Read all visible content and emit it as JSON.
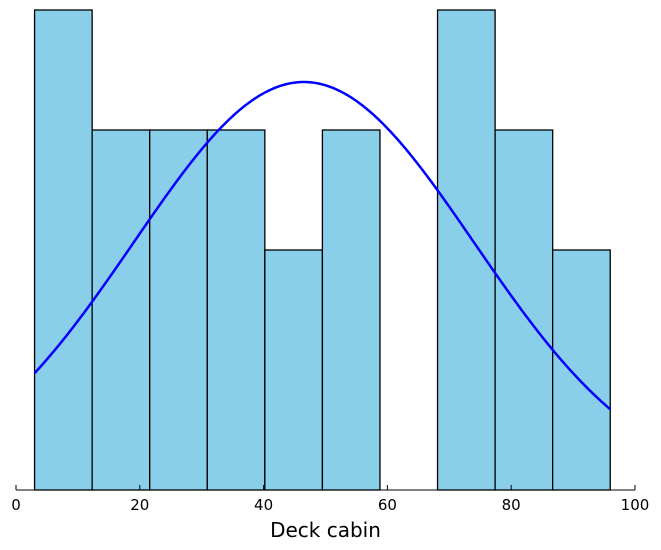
{
  "chart_data": {
    "type": "bar",
    "subtype": "histogram",
    "title": "",
    "xlabel": "Deck cabin",
    "ylabel": "",
    "xlim": [
      0,
      100
    ],
    "ylim": [
      0,
      4
    ],
    "xticks": [
      0,
      20,
      40,
      60,
      80,
      100
    ],
    "xtick_labels": [
      "0",
      "20",
      "40",
      "60",
      "80",
      "100"
    ],
    "grid": false,
    "bins": [
      {
        "start": 3.0,
        "end": 12.3,
        "value": 4
      },
      {
        "start": 12.3,
        "end": 21.6,
        "value": 3
      },
      {
        "start": 21.6,
        "end": 30.9,
        "value": 3
      },
      {
        "start": 30.9,
        "end": 40.2,
        "value": 3
      },
      {
        "start": 40.2,
        "end": 49.5,
        "value": 2
      },
      {
        "start": 49.5,
        "end": 58.8,
        "value": 3
      },
      {
        "start": 58.8,
        "end": 68.1,
        "value": 0
      },
      {
        "start": 68.1,
        "end": 77.4,
        "value": 4
      },
      {
        "start": 77.4,
        "end": 86.7,
        "value": 3
      },
      {
        "start": 86.7,
        "end": 96.0,
        "value": 2
      }
    ],
    "curve": {
      "type": "normal-density",
      "mean": 46.5,
      "std": 27.5,
      "peak": 3.4,
      "x_range": [
        3.0,
        96.0
      ]
    },
    "colors": {
      "bar_fill": "#89CFEA",
      "bar_edge": "#000000",
      "curve": "#0000FF"
    }
  }
}
